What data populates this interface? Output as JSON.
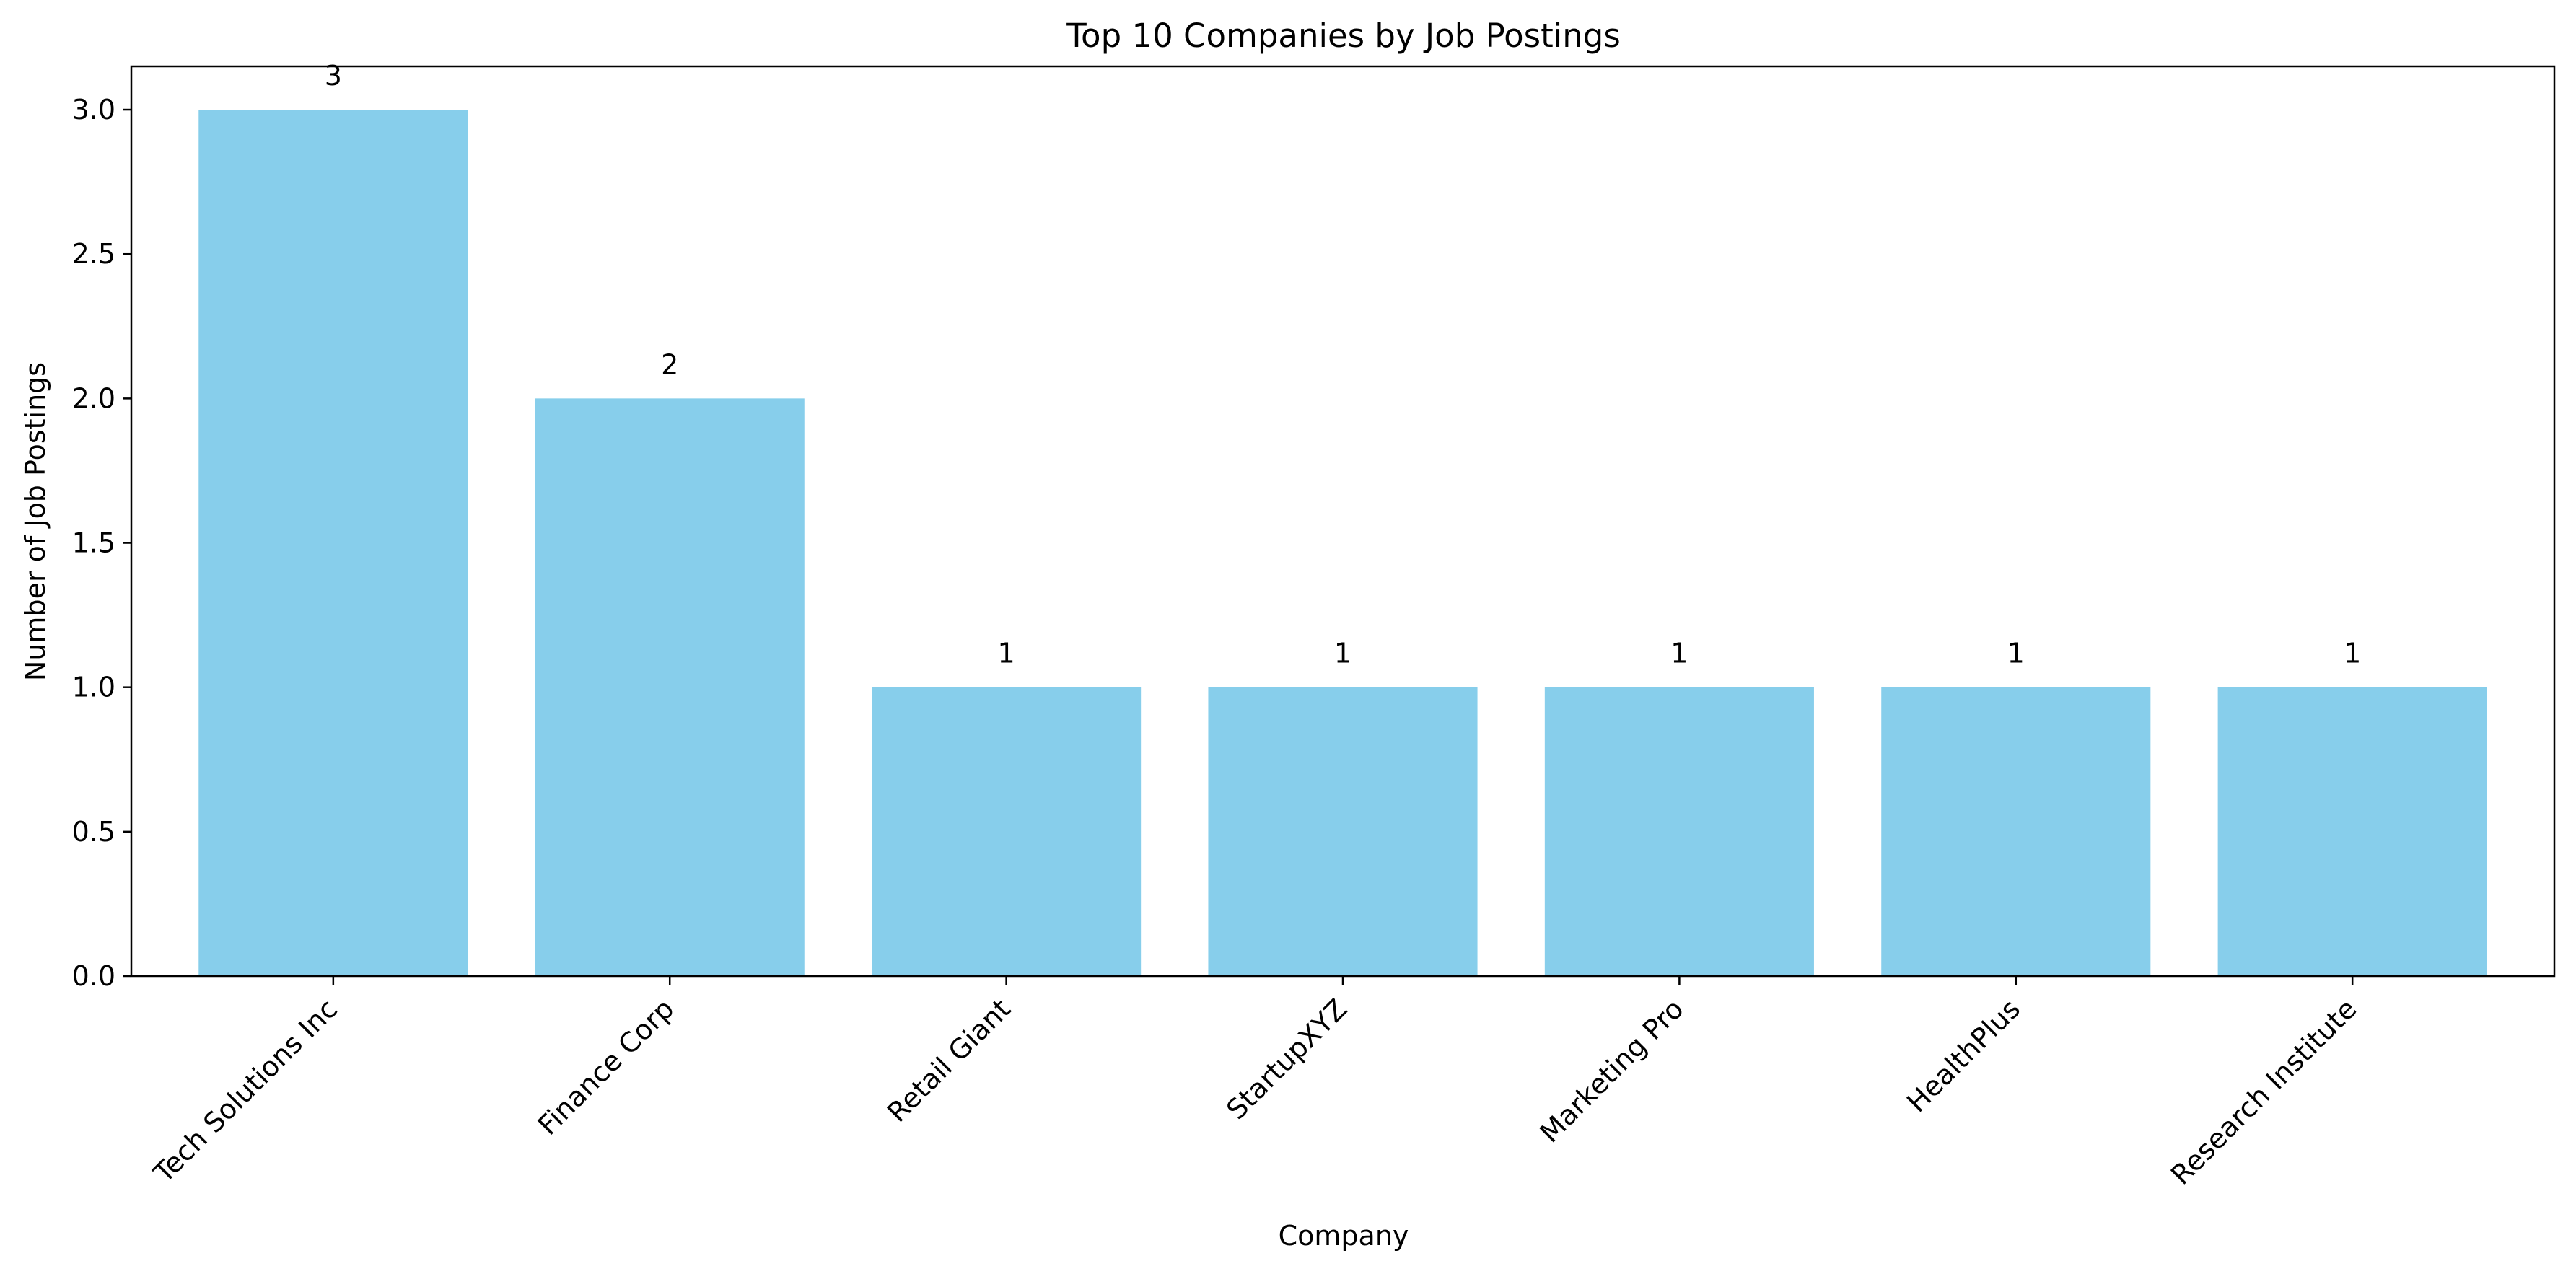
{
  "chart_data": {
    "type": "bar",
    "title": "Top 10 Companies by Job Postings",
    "xlabel": "Company",
    "ylabel": "Number of Job Postings",
    "categories": [
      "Tech Solutions Inc",
      "Finance Corp",
      "Retail Giant",
      "StartupXYZ",
      "Marketing Pro",
      "HealthPlus",
      "Research Institute"
    ],
    "values": [
      3,
      2,
      1,
      1,
      1,
      1,
      1
    ],
    "data_labels": [
      "3",
      "2",
      "1",
      "1",
      "1",
      "1",
      "1"
    ],
    "ylim": [
      0,
      3.15
    ],
    "yticks": [
      0.0,
      0.5,
      1.0,
      1.5,
      2.0,
      2.5,
      3.0
    ],
    "ytick_labels": [
      "0.0",
      "0.5",
      "1.0",
      "1.5",
      "2.0",
      "2.5",
      "3.0"
    ],
    "grid": false,
    "legend": "none",
    "bar_color": "#87CEEB"
  }
}
